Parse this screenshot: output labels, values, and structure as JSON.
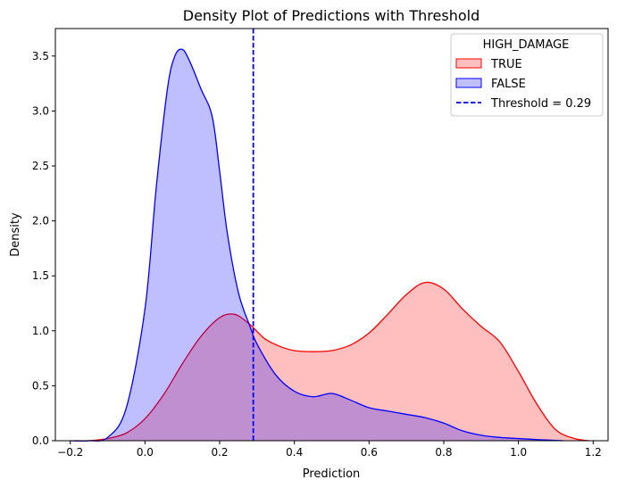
{
  "chart_data": {
    "type": "area",
    "title": "Density Plot of Predictions with Threshold",
    "xlabel": "Prediction",
    "ylabel": "Density",
    "xlim": [
      -0.24,
      1.24
    ],
    "ylim": [
      0,
      3.75
    ],
    "xticks": [
      -0.2,
      0.0,
      0.2,
      0.4,
      0.6,
      0.8,
      1.0,
      1.2
    ],
    "xtick_labels": [
      "−0.2",
      "0.0",
      "0.2",
      "0.4",
      "0.6",
      "0.8",
      "1.0",
      "1.2"
    ],
    "yticks": [
      0.0,
      0.5,
      1.0,
      1.5,
      2.0,
      2.5,
      3.0,
      3.5
    ],
    "ytick_labels": [
      "0.0",
      "0.5",
      "1.0",
      "1.5",
      "2.0",
      "2.5",
      "3.0",
      "3.5"
    ],
    "grid": false,
    "legend": {
      "title": "HIGH_DAMAGE",
      "position": "top-right",
      "entries": [
        "TRUE",
        "FALSE",
        "Threshold = 0.29"
      ]
    },
    "threshold": {
      "x": 0.29,
      "label": "Threshold = 0.29",
      "color": "#0000ff",
      "style": "dashed"
    },
    "series": [
      {
        "name": "TRUE",
        "color": "#ff0000",
        "fill": "#ff0000",
        "fill_opacity": 0.25,
        "x": [
          -0.19,
          -0.15,
          -0.1,
          -0.05,
          0.0,
          0.05,
          0.1,
          0.15,
          0.2,
          0.24,
          0.28,
          0.32,
          0.36,
          0.4,
          0.45,
          0.5,
          0.55,
          0.6,
          0.65,
          0.7,
          0.75,
          0.8,
          0.85,
          0.9,
          0.95,
          1.0,
          1.05,
          1.1,
          1.15,
          1.19
        ],
        "y": [
          0.0,
          0.0,
          0.02,
          0.07,
          0.2,
          0.42,
          0.7,
          0.95,
          1.12,
          1.15,
          1.06,
          0.93,
          0.86,
          0.82,
          0.81,
          0.82,
          0.87,
          0.98,
          1.15,
          1.33,
          1.44,
          1.38,
          1.2,
          1.04,
          0.9,
          0.63,
          0.33,
          0.1,
          0.02,
          0.0
        ]
      },
      {
        "name": "FALSE",
        "color": "#0000ff",
        "fill": "#0000ff",
        "fill_opacity": 0.25,
        "x": [
          -0.2,
          -0.15,
          -0.1,
          -0.05,
          0.0,
          0.03,
          0.06,
          0.08,
          0.1,
          0.12,
          0.15,
          0.18,
          0.2,
          0.22,
          0.25,
          0.28,
          0.3,
          0.35,
          0.4,
          0.45,
          0.5,
          0.55,
          0.6,
          0.65,
          0.7,
          0.75,
          0.8,
          0.85,
          0.9,
          0.95,
          1.0,
          1.05,
          1.12
        ],
        "y": [
          0.0,
          0.0,
          0.03,
          0.3,
          1.2,
          2.3,
          3.2,
          3.5,
          3.56,
          3.45,
          3.2,
          2.95,
          2.45,
          1.9,
          1.35,
          1.05,
          0.88,
          0.6,
          0.45,
          0.4,
          0.43,
          0.37,
          0.3,
          0.27,
          0.24,
          0.21,
          0.16,
          0.09,
          0.05,
          0.03,
          0.02,
          0.01,
          0.0
        ]
      }
    ]
  }
}
